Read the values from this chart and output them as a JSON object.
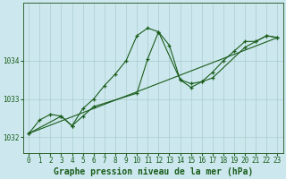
{
  "background_color": "#cce8ee",
  "grid_color": "#aacccc",
  "line_color": "#1a5c1a",
  "spine_color": "#336633",
  "title": "Graphe pression niveau de la mer (hPa)",
  "xlim": [
    -0.5,
    23.5
  ],
  "ylim": [
    1031.6,
    1035.5
  ],
  "yticks": [
    1032,
    1033,
    1034
  ],
  "xticks": [
    0,
    1,
    2,
    3,
    4,
    5,
    6,
    7,
    8,
    9,
    10,
    11,
    12,
    13,
    14,
    15,
    16,
    17,
    18,
    19,
    20,
    21,
    22,
    23
  ],
  "series1_x": [
    0,
    1,
    2,
    3,
    4,
    5,
    6,
    7,
    8,
    9,
    10,
    11,
    12,
    13,
    14,
    15,
    16,
    17,
    18,
    19,
    20,
    21,
    22,
    23
  ],
  "series1_y": [
    1032.1,
    1032.45,
    1032.6,
    1032.55,
    1032.3,
    1032.75,
    1033.0,
    1033.35,
    1033.65,
    1034.0,
    1034.65,
    1034.85,
    1034.75,
    1034.4,
    1033.5,
    1033.4,
    1033.45,
    1033.7,
    1034.0,
    1034.25,
    1034.5,
    1034.5,
    1034.65,
    1034.6
  ],
  "series2_x": [
    0,
    3,
    4,
    5,
    6,
    10,
    11,
    12,
    14,
    15,
    16,
    17,
    20,
    21,
    22,
    23
  ],
  "series2_y": [
    1032.1,
    1032.55,
    1032.3,
    1032.55,
    1032.8,
    1033.15,
    1034.05,
    1034.75,
    1033.5,
    1033.3,
    1033.45,
    1033.55,
    1034.35,
    1034.5,
    1034.65,
    1034.6
  ],
  "series3_x": [
    0,
    23
  ],
  "series3_y": [
    1032.1,
    1034.6
  ],
  "title_fontsize": 7,
  "tick_fontsize": 5.5,
  "lw": 0.8,
  "marker_size": 3.5,
  "marker_ew": 0.9
}
